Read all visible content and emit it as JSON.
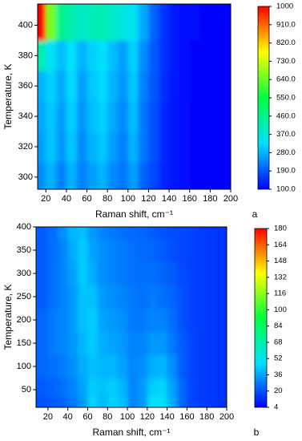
{
  "chart_data": [
    {
      "type": "heatmap",
      "panel_label": "a",
      "xlabel": "Raman shift, cm⁻¹",
      "ylabel": "Temperature, K",
      "x": [
        15,
        25,
        35,
        45,
        55,
        65,
        75,
        85,
        95,
        105,
        115,
        125,
        135,
        145,
        155,
        165,
        175,
        185,
        195
      ],
      "y": [
        300,
        320,
        340,
        360,
        380,
        400
      ],
      "z": [
        [
          240,
          280,
          230,
          280,
          230,
          260,
          280,
          240,
          220,
          260,
          200,
          170,
          135,
          118,
          108,
          104,
          102,
          100,
          100
        ],
        [
          260,
          300,
          250,
          300,
          240,
          280,
          300,
          260,
          230,
          280,
          220,
          180,
          140,
          120,
          110,
          105,
          102,
          100,
          100
        ],
        [
          270,
          300,
          260,
          310,
          250,
          290,
          310,
          270,
          240,
          290,
          220,
          180,
          140,
          120,
          110,
          105,
          102,
          100,
          100
        ],
        [
          280,
          310,
          270,
          320,
          260,
          300,
          320,
          280,
          250,
          300,
          230,
          185,
          145,
          122,
          112,
          106,
          102,
          100,
          100
        ],
        [
          420,
          340,
          290,
          330,
          280,
          310,
          330,
          290,
          260,
          310,
          240,
          190,
          148,
          124,
          113,
          106,
          103,
          100,
          100
        ],
        [
          1000,
          650,
          460,
          420,
          390,
          410,
          420,
          390,
          360,
          340,
          270,
          200,
          150,
          125,
          115,
          108,
          104,
          100,
          100
        ]
      ],
      "xlim": [
        12,
        200
      ],
      "ylim": [
        292,
        414
      ],
      "xticks": [
        20,
        40,
        60,
        80,
        100,
        120,
        140,
        160,
        180,
        200
      ],
      "yticks": [
        300,
        320,
        340,
        360,
        380,
        400
      ],
      "zlim": [
        100,
        1000
      ],
      "zticks": [
        {
          "value": 100,
          "label": "100.0"
        },
        {
          "value": 190,
          "label": "190.0"
        },
        {
          "value": 280,
          "label": "280.0"
        },
        {
          "value": 370,
          "label": "370.0"
        },
        {
          "value": 460,
          "label": "460.0"
        },
        {
          "value": 550,
          "label": "550.0"
        },
        {
          "value": 640,
          "label": "640.0"
        },
        {
          "value": 730,
          "label": "730.0"
        },
        {
          "value": 820,
          "label": "820.0"
        },
        {
          "value": 910,
          "label": "910.0"
        },
        1000
      ],
      "colormap": [
        "#0000ff",
        "#00e0ff",
        "#00ff40",
        "#ffff00",
        "#ff0000"
      ]
    },
    {
      "type": "heatmap",
      "panel_label": "b",
      "xlabel": "Raman shift, cm⁻¹",
      "ylabel": "Temperature, K",
      "x": [
        15,
        25,
        35,
        45,
        55,
        65,
        75,
        85,
        95,
        105,
        115,
        125,
        135,
        145,
        155,
        165,
        175,
        185,
        195
      ],
      "y": [
        25,
        50,
        100,
        150,
        200,
        250,
        300,
        350,
        400
      ],
      "z": [
        [
          20,
          22,
          24,
          28,
          34,
          46,
          40,
          45,
          42,
          30,
          34,
          48,
          50,
          38,
          24,
          18,
          16,
          15,
          14
        ],
        [
          22,
          24,
          26,
          30,
          36,
          44,
          42,
          44,
          40,
          30,
          34,
          44,
          46,
          36,
          24,
          18,
          16,
          15,
          14
        ],
        [
          24,
          26,
          28,
          32,
          38,
          42,
          40,
          40,
          36,
          30,
          32,
          38,
          40,
          32,
          22,
          18,
          16,
          15,
          14
        ],
        [
          24,
          28,
          30,
          34,
          40,
          44,
          38,
          36,
          34,
          30,
          30,
          34,
          34,
          28,
          22,
          18,
          16,
          15,
          14
        ],
        [
          24,
          28,
          30,
          34,
          42,
          44,
          36,
          34,
          32,
          28,
          28,
          30,
          30,
          26,
          20,
          17,
          16,
          15,
          14
        ],
        [
          22,
          26,
          30,
          34,
          42,
          42,
          34,
          32,
          30,
          28,
          26,
          28,
          26,
          24,
          20,
          17,
          16,
          15,
          14
        ],
        [
          22,
          26,
          30,
          36,
          44,
          38,
          32,
          30,
          28,
          26,
          26,
          26,
          24,
          22,
          19,
          17,
          16,
          15,
          14
        ],
        [
          22,
          26,
          30,
          38,
          44,
          36,
          32,
          30,
          28,
          26,
          25,
          24,
          22,
          20,
          18,
          17,
          16,
          15,
          14
        ],
        [
          22,
          26,
          32,
          40,
          42,
          34,
          30,
          28,
          26,
          25,
          24,
          22,
          20,
          19,
          18,
          17,
          16,
          15,
          14
        ]
      ],
      "xlim": [
        8,
        200
      ],
      "ylim": [
        12,
        400
      ],
      "xticks": [
        20,
        40,
        60,
        80,
        100,
        120,
        140,
        160,
        180,
        200
      ],
      "yticks": [
        50,
        100,
        150,
        200,
        250,
        300,
        350,
        400
      ],
      "zlim": [
        4,
        180
      ],
      "zticks": [
        4,
        20,
        36,
        52,
        68,
        84,
        100,
        116,
        132,
        148,
        164,
        180
      ],
      "colormap": [
        "#0000ff",
        "#00e0ff",
        "#00ff40",
        "#ffff00",
        "#ff0000"
      ]
    }
  ]
}
